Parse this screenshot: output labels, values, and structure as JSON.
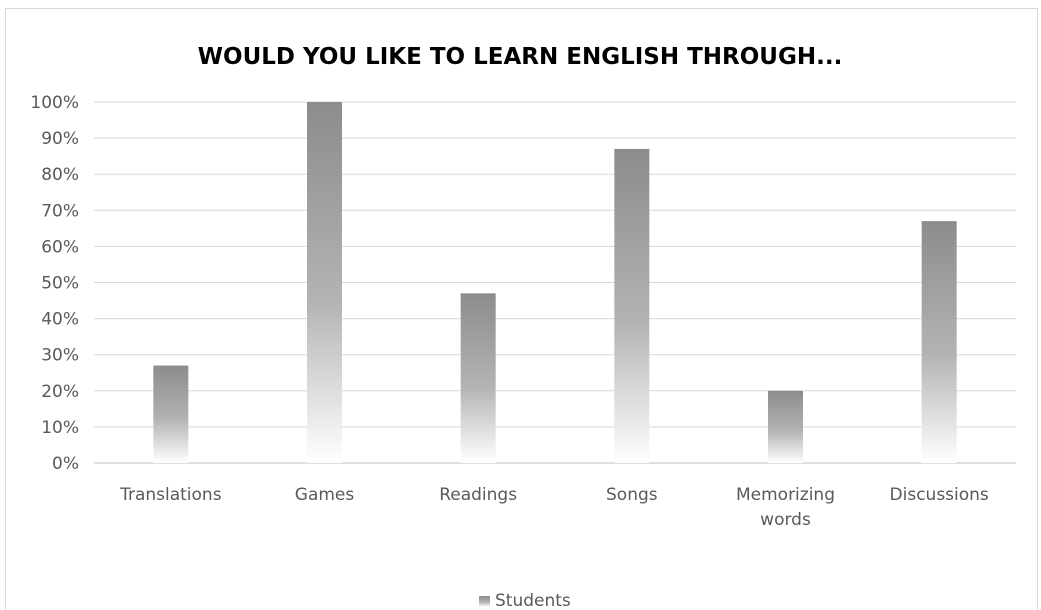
{
  "chart_data": {
    "type": "bar",
    "title": "WOULD YOU LIKE TO LEARN ENGLISH THROUGH...",
    "categories": [
      [
        "Translations"
      ],
      [
        "Games"
      ],
      [
        "Readings"
      ],
      [
        "Songs"
      ],
      [
        "Memorizing",
        "words"
      ],
      [
        "Discussions"
      ]
    ],
    "series": [
      {
        "name": "Students",
        "values": [
          27,
          100,
          47,
          87,
          20,
          67
        ]
      }
    ],
    "ylim": [
      0,
      100
    ],
    "yticks": [
      "0%",
      "10%",
      "20%",
      "30%",
      "40%",
      "50%",
      "60%",
      "70%",
      "80%",
      "90%",
      "100%"
    ],
    "grid": true,
    "legend_position": "bottom",
    "colors": {
      "bar_top": "#8c8c8c",
      "bar_bottom": "#ffffff",
      "grid": "#d9d9d9",
      "text": "#595959",
      "title": "#000000"
    }
  }
}
